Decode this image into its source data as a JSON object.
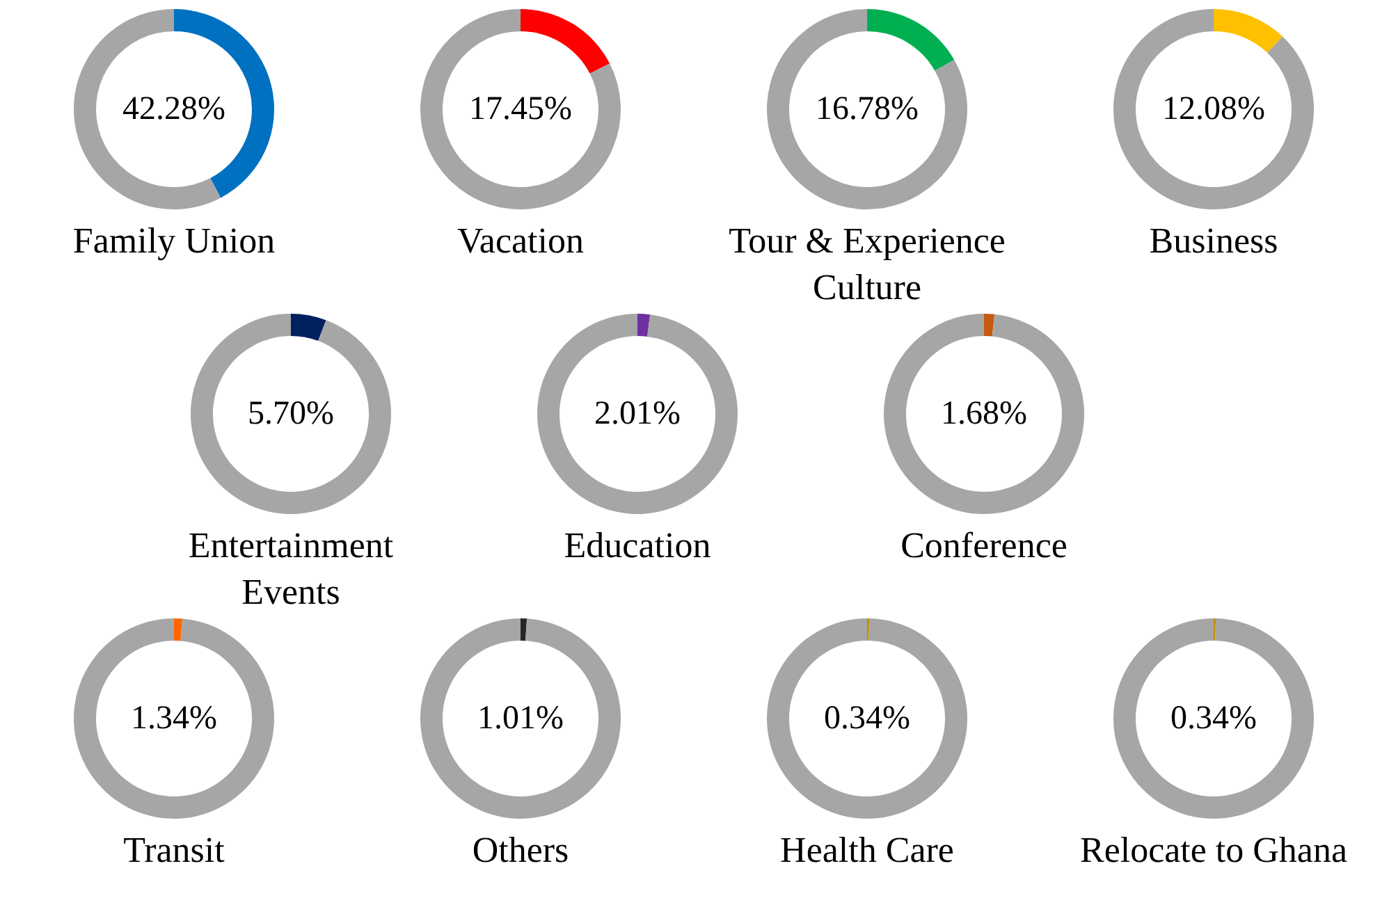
{
  "chart_data": [
    {
      "type": "donut",
      "title": "Family Union",
      "categories": [
        null,
        null
      ],
      "values": [
        42.28,
        57.72
      ],
      "colors": [
        "#0070c0",
        "#a6a6a6"
      ],
      "annotations": [
        "42.28%"
      ]
    },
    {
      "type": "donut",
      "title": "Vacation",
      "categories": [
        null,
        null
      ],
      "values": [
        17.45,
        82.55
      ],
      "colors": [
        "#ff0000",
        "#a6a6a6"
      ],
      "annotations": [
        "17.45%"
      ]
    },
    {
      "type": "donut",
      "title": "Tour & Experience Culture",
      "categories": [
        null,
        null
      ],
      "values": [
        16.78,
        83.22
      ],
      "colors": [
        "#00b050",
        "#a6a6a6"
      ],
      "annotations": [
        "16.78%"
      ]
    },
    {
      "type": "donut",
      "title": "Business",
      "categories": [
        null,
        null
      ],
      "values": [
        12.08,
        87.92
      ],
      "colors": [
        "#ffc000",
        "#a6a6a6"
      ],
      "annotations": [
        "12.08%"
      ]
    },
    {
      "type": "donut",
      "title": "Entertainment Events",
      "categories": [
        null,
        null
      ],
      "values": [
        5.7,
        94.3
      ],
      "colors": [
        "#002060",
        "#a6a6a6"
      ],
      "annotations": [
        "5.70%"
      ]
    },
    {
      "type": "donut",
      "title": "Education",
      "categories": [
        null,
        null
      ],
      "values": [
        2.01,
        97.99
      ],
      "colors": [
        "#7030a0",
        "#a6a6a6"
      ],
      "annotations": [
        "2.01%"
      ]
    },
    {
      "type": "donut",
      "title": "Conference",
      "categories": [
        null,
        null
      ],
      "values": [
        1.68,
        98.32
      ],
      "colors": [
        "#c55a11",
        "#a6a6a6"
      ],
      "annotations": [
        "1.68%"
      ]
    },
    {
      "type": "donut",
      "title": "Transit",
      "categories": [
        null,
        null
      ],
      "values": [
        1.34,
        98.66
      ],
      "colors": [
        "#ff6600",
        "#a6a6a6"
      ],
      "annotations": [
        "1.34%"
      ]
    },
    {
      "type": "donut",
      "title": "Others",
      "categories": [
        null,
        null
      ],
      "values": [
        1.01,
        98.99
      ],
      "colors": [
        "#262626",
        "#a6a6a6"
      ],
      "annotations": [
        "1.01%"
      ]
    },
    {
      "type": "donut",
      "title": "Health Care",
      "categories": [
        null,
        null
      ],
      "values": [
        0.34,
        99.66
      ],
      "colors": [
        "#bf9000",
        "#a6a6a6"
      ],
      "annotations": [
        "0.34%"
      ]
    },
    {
      "type": "donut",
      "title": "Relocate to Ghana",
      "categories": [
        null,
        null
      ],
      "values": [
        0.34,
        99.66
      ],
      "colors": [
        "#bf9000",
        "#a6a6a6"
      ],
      "annotations": [
        "0.34%"
      ]
    }
  ]
}
